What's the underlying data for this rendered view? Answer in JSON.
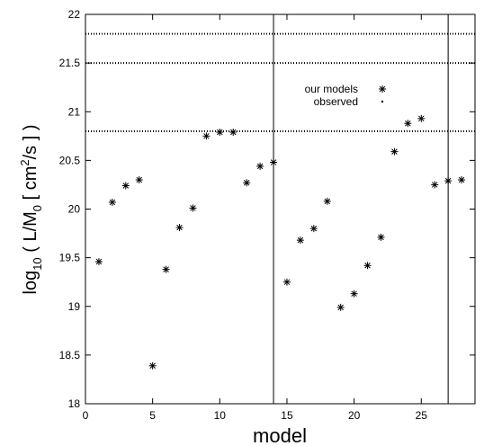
{
  "chart_data": {
    "type": "scatter",
    "xlabel": "model",
    "ylabel": {
      "prefix": "log",
      "prefix_sub": "10",
      "open": " ( L/M",
      "open_sub": "0",
      "mid": " [ cm",
      "mid_sup": "2",
      "close": "/s ] )"
    },
    "xlim": [
      0,
      29
    ],
    "ylim": [
      18,
      22
    ],
    "xticks": [
      0,
      5,
      10,
      15,
      20,
      25
    ],
    "yticks": [
      18,
      18.5,
      19,
      19.5,
      20,
      20.5,
      21,
      21.5,
      22
    ],
    "legend": {
      "position": "top-right"
    },
    "series": [
      {
        "name": "our models",
        "marker": "asterisk",
        "points": [
          [
            1,
            19.46
          ],
          [
            2,
            20.07
          ],
          [
            3,
            20.24
          ],
          [
            4,
            20.3
          ],
          [
            5,
            18.39
          ],
          [
            6,
            19.38
          ],
          [
            7,
            19.81
          ],
          [
            8,
            20.01
          ],
          [
            9,
            20.75
          ],
          [
            10,
            20.79
          ],
          [
            11,
            20.79
          ],
          [
            12,
            20.27
          ],
          [
            13,
            20.44
          ],
          [
            14,
            20.48
          ],
          [
            15,
            19.25
          ],
          [
            16,
            19.68
          ],
          [
            17,
            19.8
          ],
          [
            18,
            20.08
          ],
          [
            19,
            18.99
          ],
          [
            20,
            19.13
          ],
          [
            21,
            19.42
          ],
          [
            22,
            19.71
          ],
          [
            23,
            20.59
          ],
          [
            24,
            20.88
          ],
          [
            25,
            20.93
          ],
          [
            26,
            20.25
          ],
          [
            27,
            20.29
          ],
          [
            28,
            20.3
          ]
        ]
      },
      {
        "name": "observed",
        "marker": "dotted-line",
        "levels": [
          21.8,
          21.5,
          20.8
        ]
      }
    ],
    "vertical_lines": [
      14,
      27
    ]
  }
}
